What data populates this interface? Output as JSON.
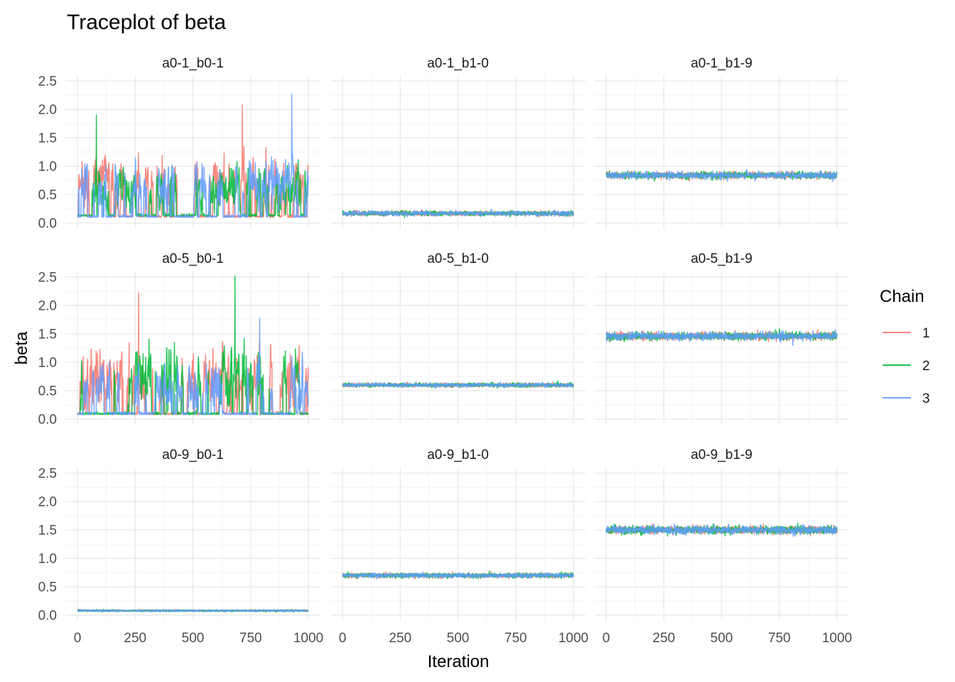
{
  "chart_data": {
    "type": "line",
    "title": "Traceplot of beta",
    "xlabel": "Iteration",
    "ylabel": "beta",
    "xlim": [
      0,
      1000
    ],
    "ylim": [
      0,
      2.5
    ],
    "x_ticks": [
      "0",
      "250",
      "500",
      "750",
      "1000"
    ],
    "y_ticks": [
      "0.0",
      "0.5",
      "1.0",
      "1.5",
      "2.0",
      "2.5"
    ],
    "grid": true,
    "legend": {
      "title": "Chain",
      "placement": "right",
      "entries": [
        {
          "label": "1",
          "color": "#F8766D"
        },
        {
          "label": "2",
          "color": "#00BA38"
        },
        {
          "label": "3",
          "color": "#619CFF"
        }
      ]
    },
    "facets": [
      {
        "label": "a0-1_b0-1",
        "series": [
          {
            "name": "1",
            "mode": "switching",
            "seed": 11,
            "low": 0.1,
            "high": 0.75,
            "spread": 0.35,
            "peak": 2.08,
            "stay": 0.94
          },
          {
            "name": "2",
            "mode": "switching",
            "seed": 23,
            "low": 0.12,
            "high": 0.6,
            "spread": 0.3,
            "peak": 1.9,
            "stay": 0.95
          },
          {
            "name": "3",
            "mode": "switching",
            "seed": 37,
            "low": 0.1,
            "high": 0.7,
            "spread": 0.35,
            "peak": 2.27,
            "stay": 0.95
          }
        ]
      },
      {
        "label": "a0-1_b1-0",
        "series": [
          {
            "name": "1",
            "mode": "stationary",
            "seed": 41,
            "mean": 0.17,
            "sd": 0.02
          },
          {
            "name": "2",
            "mode": "stationary",
            "seed": 43,
            "mean": 0.17,
            "sd": 0.02
          },
          {
            "name": "3",
            "mode": "stationary",
            "seed": 47,
            "mean": 0.17,
            "sd": 0.02
          }
        ]
      },
      {
        "label": "a0-1_b1-9",
        "series": [
          {
            "name": "1",
            "mode": "stationary",
            "seed": 53,
            "mean": 0.84,
            "sd": 0.03
          },
          {
            "name": "2",
            "mode": "stationary",
            "seed": 59,
            "mean": 0.84,
            "sd": 0.03
          },
          {
            "name": "3",
            "mode": "stationary",
            "seed": 61,
            "mean": 0.84,
            "sd": 0.03
          }
        ]
      },
      {
        "label": "a0-5_b0-1",
        "series": [
          {
            "name": "1",
            "mode": "switching",
            "seed": 67,
            "low": 0.08,
            "high": 0.65,
            "spread": 0.4,
            "peak": 2.22,
            "stay": 0.95
          },
          {
            "name": "2",
            "mode": "switching",
            "seed": 71,
            "low": 0.08,
            "high": 0.75,
            "spread": 0.45,
            "peak": 2.52,
            "stay": 0.96
          },
          {
            "name": "3",
            "mode": "switching",
            "seed": 73,
            "low": 0.08,
            "high": 0.6,
            "spread": 0.35,
            "peak": 1.78,
            "stay": 0.96
          }
        ]
      },
      {
        "label": "a0-5_b1-0",
        "series": [
          {
            "name": "1",
            "mode": "stationary",
            "seed": 79,
            "mean": 0.6,
            "sd": 0.018
          },
          {
            "name": "2",
            "mode": "stationary",
            "seed": 83,
            "mean": 0.6,
            "sd": 0.018
          },
          {
            "name": "3",
            "mode": "stationary",
            "seed": 89,
            "mean": 0.6,
            "sd": 0.018
          }
        ]
      },
      {
        "label": "a0-5_b1-9",
        "series": [
          {
            "name": "1",
            "mode": "stationary",
            "seed": 97,
            "mean": 1.46,
            "sd": 0.035
          },
          {
            "name": "2",
            "mode": "stationary",
            "seed": 101,
            "mean": 1.46,
            "sd": 0.035
          },
          {
            "name": "3",
            "mode": "stationary",
            "seed": 103,
            "mean": 1.46,
            "sd": 0.035
          }
        ]
      },
      {
        "label": "a0-9_b0-1",
        "series": [
          {
            "name": "1",
            "mode": "stationary",
            "seed": 107,
            "mean": 0.08,
            "sd": 0.008
          },
          {
            "name": "2",
            "mode": "stationary",
            "seed": 109,
            "mean": 0.08,
            "sd": 0.008
          },
          {
            "name": "3",
            "mode": "stationary",
            "seed": 113,
            "mean": 0.08,
            "sd": 0.008
          }
        ]
      },
      {
        "label": "a0-9_b1-0",
        "series": [
          {
            "name": "1",
            "mode": "stationary",
            "seed": 127,
            "mean": 0.7,
            "sd": 0.02
          },
          {
            "name": "2",
            "mode": "stationary",
            "seed": 131,
            "mean": 0.7,
            "sd": 0.02
          },
          {
            "name": "3",
            "mode": "stationary",
            "seed": 137,
            "mean": 0.7,
            "sd": 0.02
          }
        ]
      },
      {
        "label": "a0-9_b1-9",
        "series": [
          {
            "name": "1",
            "mode": "stationary",
            "seed": 139,
            "mean": 1.5,
            "sd": 0.035
          },
          {
            "name": "2",
            "mode": "stationary",
            "seed": 149,
            "mean": 1.5,
            "sd": 0.035
          },
          {
            "name": "3",
            "mode": "stationary",
            "seed": 151,
            "mean": 1.5,
            "sd": 0.035
          }
        ]
      }
    ]
  }
}
